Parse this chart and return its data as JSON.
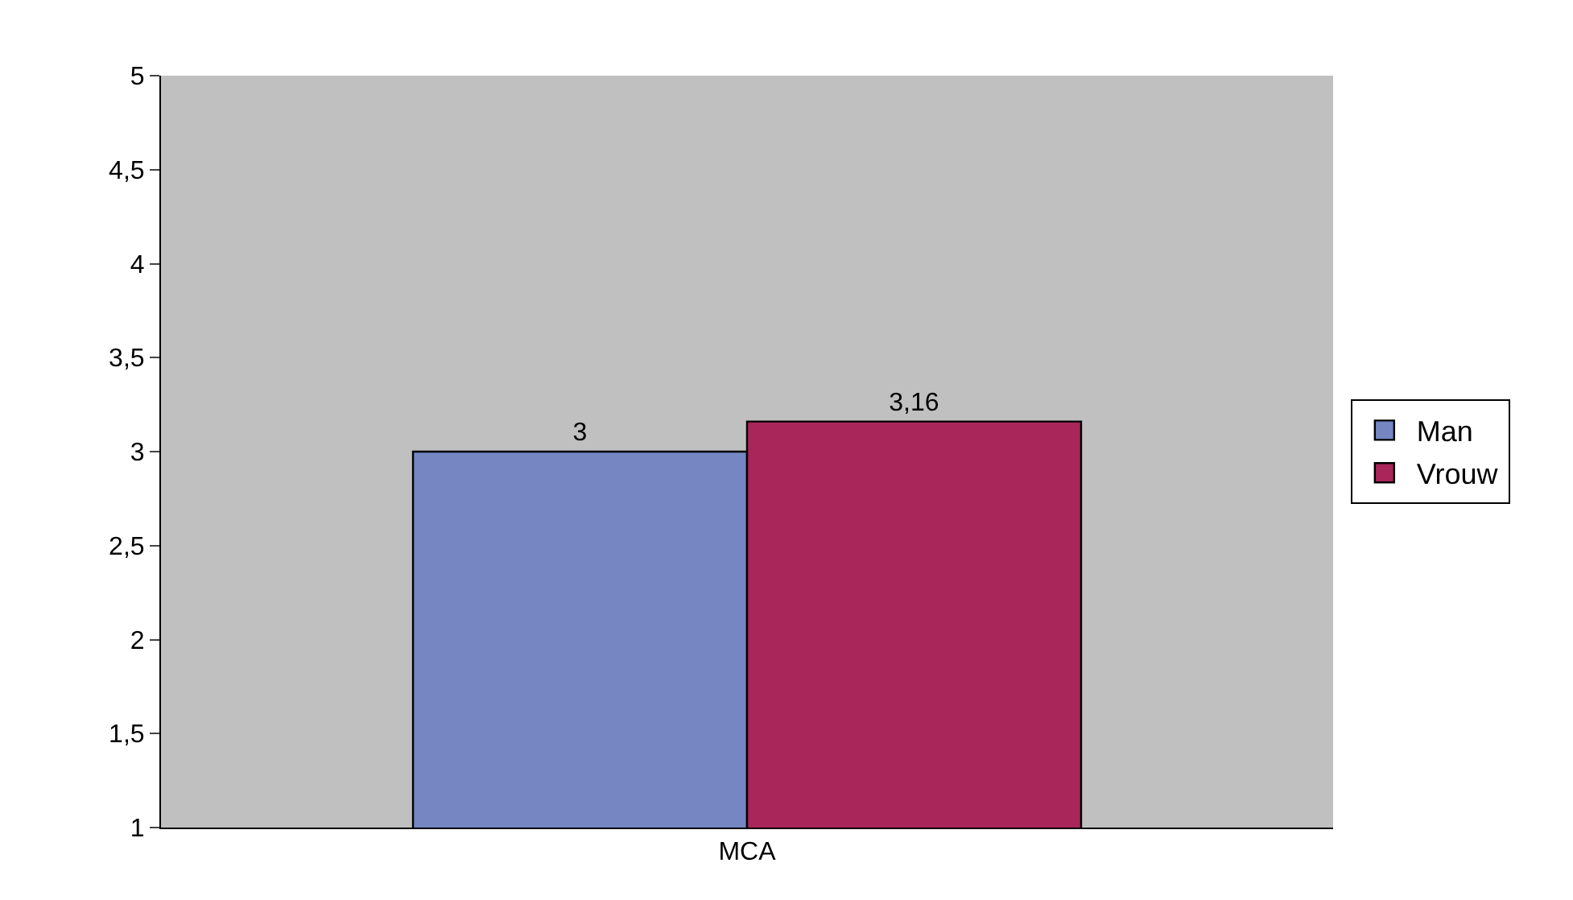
{
  "chart_data": {
    "type": "bar",
    "categories": [
      "MCA"
    ],
    "series": [
      {
        "name": "Man",
        "color": "#7586c2",
        "values": [
          3
        ],
        "value_labels": [
          "3"
        ]
      },
      {
        "name": "Vrouw",
        "color": "#a8265a",
        "values": [
          3.16
        ],
        "value_labels": [
          "3,16"
        ]
      }
    ],
    "ylim": [
      1,
      5
    ],
    "yticks": [
      1,
      {
        "value": 1.5,
        "label": "1,5"
      },
      2,
      {
        "value": 2.5,
        "label": "2,5"
      },
      3,
      {
        "value": 3.5,
        "label": "3,5"
      },
      4,
      {
        "value": 4.5,
        "label": "4,5"
      },
      5
    ],
    "grid": false,
    "legend": "right"
  }
}
